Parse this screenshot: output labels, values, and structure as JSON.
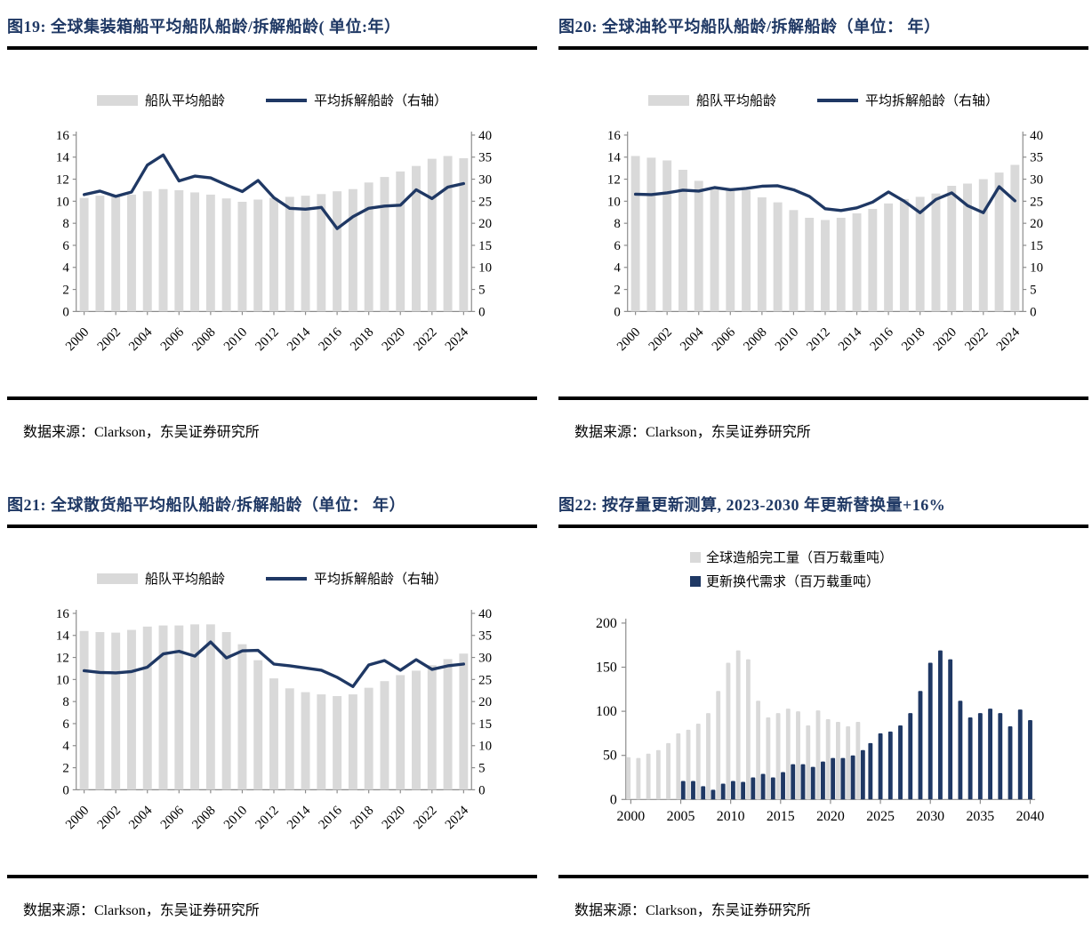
{
  "colors": {
    "title_navy": "#1f3864",
    "line_navy": "#1f3864",
    "bar_gray": "#d9d9d9",
    "bar_navy": "#1f3864",
    "axis_gray": "#8c8c8c",
    "rule_black": "#000000"
  },
  "panels": [
    {
      "title": "图19:  全球集装箱船平均船队船龄/拆解船龄( 单位:年）",
      "source": "数据来源：Clarkson，东吴证券研究所",
      "legend": [
        {
          "label": "船队平均船龄",
          "type": "bar"
        },
        {
          "label": "平均拆解船龄（右轴）",
          "type": "line"
        }
      ],
      "chart_data": {
        "type": "bar+line",
        "title": "全球集装箱船平均船队船龄/拆解船龄(年)",
        "categories": [
          "2000",
          "2001",
          "2002",
          "2003",
          "2004",
          "2005",
          "2006",
          "2007",
          "2008",
          "2009",
          "2010",
          "2011",
          "2012",
          "2013",
          "2014",
          "2015",
          "2016",
          "2017",
          "2018",
          "2019",
          "2020",
          "2021",
          "2022",
          "2023",
          "2024"
        ],
        "series": [
          {
            "name": "船队平均船龄",
            "type": "bar",
            "axis": "left",
            "values": [
              10.3,
              10.5,
              10.45,
              10.6,
              10.9,
              11.1,
              11.0,
              10.8,
              10.6,
              10.25,
              9.95,
              10.15,
              10.3,
              10.4,
              10.5,
              10.65,
              10.9,
              11.1,
              11.7,
              12.2,
              12.7,
              13.2,
              13.85,
              14.1,
              13.9
            ]
          },
          {
            "name": "平均拆解船龄（右轴）",
            "type": "line",
            "axis": "right",
            "values": [
              26.5,
              27.3,
              26.1,
              27.1,
              33.2,
              35.5,
              29.6,
              30.7,
              30.3,
              28.7,
              27.2,
              29.7,
              25.8,
              23.4,
              23.2,
              23.6,
              18.8,
              21.5,
              23.4,
              23.9,
              24.1,
              27.6,
              25.6,
              28.2,
              29.0
            ]
          }
        ],
        "left_axis": {
          "min": 0,
          "max": 16,
          "step": 2
        },
        "right_axis": {
          "min": 0,
          "max": 40,
          "step": 5
        },
        "x_label_every": 2,
        "x_label_rotate": -45,
        "grid": false,
        "legend_position": "top"
      }
    },
    {
      "title": "图20:  全球油轮平均船队船龄/拆解船龄（单位： 年）",
      "source": "数据来源：Clarkson，东吴证券研究所",
      "legend": [
        {
          "label": "船队平均船龄",
          "type": "bar"
        },
        {
          "label": "平均拆解船龄（右轴）",
          "type": "line"
        }
      ],
      "chart_data": {
        "type": "bar+line",
        "title": "全球油轮平均船队船龄/拆解船龄(年)",
        "categories": [
          "2000",
          "2001",
          "2002",
          "2003",
          "2004",
          "2005",
          "2006",
          "2007",
          "2008",
          "2009",
          "2010",
          "2011",
          "2012",
          "2013",
          "2014",
          "2015",
          "2016",
          "2017",
          "2018",
          "2019",
          "2020",
          "2021",
          "2022",
          "2023",
          "2024"
        ],
        "series": [
          {
            "name": "船队平均船龄",
            "type": "bar",
            "axis": "left",
            "values": [
              14.1,
              13.95,
              13.7,
              12.85,
              11.85,
              11.3,
              11.2,
              11.0,
              10.35,
              9.9,
              9.2,
              8.5,
              8.3,
              8.5,
              8.9,
              9.3,
              9.8,
              10.2,
              10.4,
              10.7,
              11.4,
              11.6,
              12.0,
              12.6,
              13.3
            ]
          },
          {
            "name": "平均拆解船龄（右轴）",
            "type": "line",
            "axis": "right",
            "values": [
              26.6,
              26.5,
              26.9,
              27.5,
              27.3,
              28.1,
              27.6,
              27.9,
              28.4,
              28.5,
              27.6,
              26.1,
              23.3,
              22.9,
              23.5,
              24.8,
              27.1,
              25.0,
              22.4,
              25.4,
              26.9,
              24.0,
              22.4,
              28.3,
              25.1
            ]
          }
        ],
        "left_axis": {
          "min": 0,
          "max": 16,
          "step": 2
        },
        "right_axis": {
          "min": 0,
          "max": 40,
          "step": 5
        },
        "x_label_every": 2,
        "x_label_rotate": -45,
        "grid": false,
        "legend_position": "top"
      }
    },
    {
      "title": "图21:  全球散货船平均船队船龄/拆解船龄（单位： 年）",
      "source": "数据来源：Clarkson，东吴证券研究所",
      "legend": [
        {
          "label": "船队平均船龄",
          "type": "bar"
        },
        {
          "label": "平均拆解船龄（右轴）",
          "type": "line"
        }
      ],
      "chart_data": {
        "type": "bar+line",
        "title": "全球散货船平均船队船龄/拆解船龄(年)",
        "categories": [
          "2000",
          "2001",
          "2002",
          "2003",
          "2004",
          "2005",
          "2006",
          "2007",
          "2008",
          "2009",
          "2010",
          "2011",
          "2012",
          "2013",
          "2014",
          "2015",
          "2016",
          "2017",
          "2018",
          "2019",
          "2020",
          "2021",
          "2022",
          "2023",
          "2024"
        ],
        "series": [
          {
            "name": "船队平均船龄",
            "type": "bar",
            "axis": "left",
            "values": [
              14.4,
              14.3,
              14.25,
              14.5,
              14.8,
              14.9,
              14.9,
              15.0,
              15.0,
              14.3,
              13.2,
              11.75,
              10.1,
              9.2,
              8.85,
              8.65,
              8.5,
              8.65,
              9.25,
              9.85,
              10.4,
              10.8,
              11.3,
              11.85,
              12.35
            ]
          },
          {
            "name": "平均拆解船龄（右轴）",
            "type": "line",
            "axis": "right",
            "values": [
              27.0,
              26.6,
              26.5,
              26.8,
              27.8,
              30.8,
              31.4,
              30.3,
              33.5,
              29.9,
              31.5,
              31.6,
              28.5,
              28.1,
              27.6,
              27.1,
              25.5,
              23.4,
              28.3,
              29.3,
              27.1,
              29.5,
              27.3,
              28.1,
              28.5
            ]
          }
        ],
        "left_axis": {
          "min": 0,
          "max": 16,
          "step": 2
        },
        "right_axis": {
          "min": 0,
          "max": 40,
          "step": 5
        },
        "x_label_every": 2,
        "x_label_rotate": -45,
        "grid": false,
        "legend_position": "top"
      }
    },
    {
      "title": "图22:  按存量更新测算, 2023-2030 年更新替换量+16%",
      "source": "数据来源：Clarkson，东吴证券研究所",
      "legend": [
        {
          "label": "全球造船完工量（百万载重吨）",
          "type": "bar-gray"
        },
        {
          "label": "更新换代需求（百万载重吨）",
          "type": "bar-navy"
        }
      ],
      "chart_data": {
        "type": "bar",
        "title": "按存量更新测算的更新替换量（百万载重吨）",
        "categories": [
          "2000",
          "2001",
          "2002",
          "2003",
          "2004",
          "2005",
          "2006",
          "2007",
          "2008",
          "2009",
          "2010",
          "2011",
          "2012",
          "2013",
          "2014",
          "2015",
          "2016",
          "2017",
          "2018",
          "2019",
          "2020",
          "2021",
          "2022",
          "2023",
          "2024",
          "2025",
          "2026",
          "2027",
          "2028",
          "2029",
          "2030",
          "2031",
          "2032",
          "2033",
          "2034",
          "2035",
          "2036",
          "2037",
          "2038",
          "2039",
          "2040"
        ],
        "series": [
          {
            "name": "全球造船完工量（百万载重吨）",
            "values": [
              48,
              47,
              52,
              56,
              64,
              75,
              79,
              86,
              98,
              123,
              155,
              169,
              159,
              112,
              93,
              98,
              103,
              100,
              84,
              101,
              91,
              88,
              83,
              88,
              null,
              null,
              null,
              null,
              null,
              null,
              null,
              null,
              null,
              null,
              null,
              null,
              null,
              null,
              null,
              null,
              null
            ]
          },
          {
            "name": "更新换代需求（百万载重吨）",
            "values": [
              null,
              null,
              null,
              null,
              null,
              21,
              21,
              15,
              11,
              18,
              21,
              20,
              25,
              29,
              25,
              31,
              40,
              40,
              37,
              43,
              47,
              47,
              50,
              56,
              64,
              75,
              77,
              84,
              98,
              123,
              155,
              169,
              159,
              112,
              93,
              98,
              103,
              98,
              83,
              102,
              90
            ]
          }
        ],
        "y_axis": {
          "min": 0,
          "max": 200,
          "step": 50
        },
        "ylabel": "",
        "x_label_every": 5,
        "grid": false,
        "legend_position": "top"
      }
    }
  ]
}
